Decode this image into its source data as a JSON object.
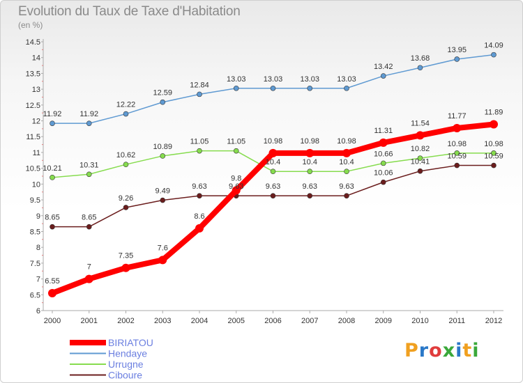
{
  "logo": [
    "P",
    "r",
    "o",
    "x",
    "i",
    "t",
    "i"
  ],
  "colors": {
    "BIRIATOU": "#ff0000",
    "Hendaye": "#5f9ad2",
    "Urrugne": "#86dc4e",
    "Ciboure": "#6b1d1d",
    "axis": "#aaaaaa",
    "text": "#333333",
    "legend_text": "#6b7fe0"
  },
  "chart_data": {
    "type": "line",
    "title": "Evolution du Taux de Taxe d'Habitation",
    "subtitle": "(en %)",
    "x": [
      "2000",
      "2001",
      "2002",
      "2003",
      "2004",
      "2005",
      "2006",
      "2007",
      "2008",
      "2009",
      "2010",
      "2011",
      "2012"
    ],
    "ylim": [
      6,
      14.5
    ],
    "yticks": [
      "6",
      "6.5",
      "7",
      "7.5",
      "8",
      "8.5",
      "9",
      "9.5",
      "10",
      "10.5",
      "11",
      "11.5",
      "12",
      "12.5",
      "13",
      "13.5",
      "14",
      "14.5"
    ],
    "grid": false,
    "legend_position": "bottom-left",
    "series": [
      {
        "name": "BIRIATOU",
        "values": [
          6.55,
          7,
          7.35,
          7.6,
          8.6,
          9.8,
          10.98,
          10.98,
          10.98,
          11.31,
          11.54,
          11.77,
          11.89
        ],
        "labels": [
          "6.55",
          "7",
          "7.35",
          "7.6",
          "8.6",
          "9.8",
          "10.98",
          "10.98",
          "10.98",
          "11.31",
          "11.54",
          "11.77",
          "11.89"
        ]
      },
      {
        "name": "Hendaye",
        "values": [
          11.92,
          11.92,
          12.22,
          12.59,
          12.84,
          13.03,
          13.03,
          13.03,
          13.03,
          13.42,
          13.68,
          13.95,
          14.09
        ],
        "labels": [
          "11.92",
          "11.92",
          "12.22",
          "12.59",
          "12.84",
          "13.03",
          "13.03",
          "13.03",
          "13.03",
          "13.42",
          "13.68",
          "13.95",
          "14.09"
        ]
      },
      {
        "name": "Urrugne",
        "values": [
          10.21,
          10.31,
          10.62,
          10.89,
          11.05,
          11.05,
          10.4,
          10.4,
          10.4,
          10.66,
          10.82,
          10.98,
          10.98
        ],
        "labels": [
          "10.21",
          "10.31",
          "10.62",
          "10.89",
          "11.05",
          "11.05",
          "10.4",
          "10.4",
          "10.4",
          "10.66",
          "10.82",
          "10.98",
          "10.98"
        ]
      },
      {
        "name": "Ciboure",
        "values": [
          8.65,
          8.65,
          9.26,
          9.49,
          9.63,
          9.63,
          9.63,
          9.63,
          9.63,
          10.06,
          10.41,
          10.59,
          10.59
        ],
        "labels": [
          "8.65",
          "8.65",
          "9.26",
          "9.49",
          "9.63",
          "9.63",
          "9.63",
          "9.63",
          "9.63",
          "10.06",
          "10.41",
          "10.59",
          "10.59"
        ]
      }
    ]
  }
}
